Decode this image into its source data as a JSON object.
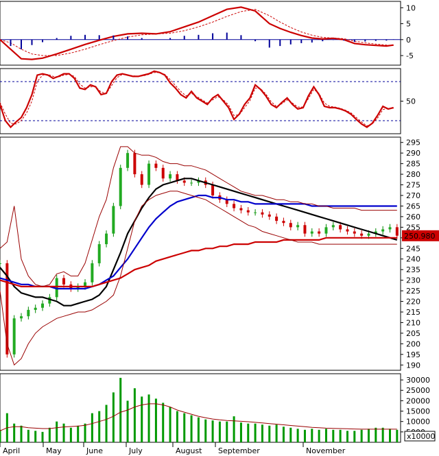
{
  "chart_data": [
    {
      "panel": "macd",
      "type": "line",
      "y_ticks": [
        "10",
        "5",
        "0",
        "-5"
      ],
      "ylim": [
        -8,
        12
      ],
      "x": [
        0,
        6,
        12,
        18,
        24,
        32,
        40,
        48,
        56,
        64,
        72,
        80,
        88,
        96,
        104,
        112,
        120,
        128,
        136,
        144,
        152,
        158,
        164,
        170,
        176,
        182,
        188,
        194,
        200,
        206,
        212,
        218,
        222
      ],
      "series": [
        {
          "key": "macd",
          "color": "#cc0000",
          "values": [
            0,
            -3,
            -6,
            -6.2,
            -5.8,
            -4.5,
            -3,
            -1.5,
            -0.2,
            1,
            1.8,
            2,
            1.8,
            2.5,
            4,
            5.5,
            7.5,
            9.5,
            10.2,
            9,
            5,
            3.5,
            2.3,
            1.3,
            0.5,
            0.2,
            0.4,
            0,
            -1.2,
            -1.6,
            -1.8,
            -2,
            -1.7
          ]
        },
        {
          "key": "signal",
          "color": "#cc0000",
          "dashed": true,
          "values": [
            0,
            -1,
            -3,
            -4.5,
            -5,
            -5,
            -4.2,
            -3,
            -1.6,
            -0.3,
            0.8,
            1.5,
            1.8,
            2,
            2.8,
            4,
            5.5,
            7.3,
            8.8,
            9.5,
            7.5,
            5.5,
            3.8,
            2.4,
            1.4,
            0.7,
            0.5,
            0.3,
            -0.5,
            -1,
            -1.4,
            -1.7,
            -1.8
          ]
        },
        {
          "key": "histogram",
          "color": "#000099",
          "bars": true,
          "values": [
            0,
            -2,
            -3,
            -1.7,
            -0.8,
            0.5,
            1.2,
            1.5,
            1.4,
            1.3,
            1,
            0.5,
            0,
            0.5,
            1.2,
            1.5,
            2,
            2.2,
            1.4,
            -0.5,
            -2.5,
            -2,
            -1.5,
            -1.1,
            -0.9,
            -0.5,
            -0.1,
            -0.3,
            -0.7,
            -0.6,
            -0.4,
            -0.3,
            0.1
          ]
        }
      ]
    },
    {
      "panel": "stochastic",
      "type": "line",
      "y_ticks": [
        "50"
      ],
      "ylim": [
        0,
        100
      ],
      "reference_lines": [
        80,
        20
      ],
      "x": [
        0,
        3,
        6,
        9,
        12,
        15,
        18,
        21,
        24,
        27,
        30,
        33,
        36,
        39,
        42,
        45,
        48,
        51,
        54,
        57,
        60,
        63,
        66,
        69,
        72,
        75,
        78,
        81,
        84,
        87,
        90,
        93,
        96,
        99,
        102,
        105,
        108,
        111,
        114,
        117,
        120,
        123,
        126,
        129,
        132,
        135,
        138,
        141,
        144,
        147,
        150,
        153,
        156,
        159,
        162,
        165,
        168,
        171,
        174,
        177,
        180,
        183,
        186,
        189,
        192,
        195,
        198,
        201,
        204,
        207,
        210,
        213,
        216,
        219,
        222
      ],
      "series": [
        {
          "key": "k",
          "color": "#cc0000",
          "values": [
            45,
            20,
            10,
            18,
            25,
            40,
            60,
            90,
            92,
            90,
            85,
            88,
            92,
            92,
            85,
            70,
            68,
            75,
            72,
            60,
            62,
            80,
            90,
            92,
            90,
            88,
            88,
            90,
            92,
            96,
            94,
            90,
            78,
            70,
            60,
            55,
            65,
            55,
            50,
            45,
            55,
            60,
            50,
            40,
            22,
            30,
            45,
            55,
            75,
            68,
            58,
            45,
            40,
            48,
            55,
            45,
            38,
            40,
            58,
            72,
            60,
            42,
            40,
            40,
            38,
            35,
            30,
            22,
            15,
            10,
            16,
            28,
            42,
            38,
            40
          ]
        },
        {
          "key": "d",
          "color": "#cc0000",
          "dashed": true,
          "values": [
            48,
            30,
            16,
            15,
            20,
            32,
            50,
            80,
            90,
            91,
            88,
            87,
            90,
            91,
            88,
            76,
            70,
            72,
            72,
            64,
            62,
            74,
            86,
            91,
            90,
            89,
            88,
            89,
            91,
            94,
            94,
            91,
            83,
            74,
            65,
            58,
            62,
            57,
            52,
            47,
            52,
            57,
            52,
            44,
            28,
            29,
            40,
            51,
            70,
            69,
            61,
            49,
            42,
            46,
            52,
            47,
            41,
            41,
            54,
            68,
            62,
            47,
            42,
            41,
            39,
            36,
            32,
            25,
            18,
            12,
            15,
            24,
            37,
            39,
            39
          ]
        }
      ]
    },
    {
      "panel": "price",
      "type": "candlestick",
      "y_ticks": [
        "295",
        "290",
        "285",
        "280",
        "275",
        "270",
        "265",
        "260",
        "255",
        "250",
        "245",
        "240",
        "235",
        "230",
        "225",
        "220",
        "215",
        "210",
        "205",
        "200",
        "195",
        "190"
      ],
      "ylim": [
        187.5,
        297.5
      ],
      "last_price": "250.980",
      "months": [
        "April",
        "May",
        "June",
        "July",
        "August",
        "September",
        "November"
      ],
      "x": [
        0,
        4,
        8,
        12,
        16,
        20,
        24,
        28,
        32,
        36,
        40,
        44,
        48,
        52,
        56,
        60,
        64,
        68,
        72,
        76,
        80,
        84,
        88,
        92,
        96,
        100,
        104,
        108,
        112,
        116,
        120,
        124,
        128,
        132,
        136,
        140,
        144,
        148,
        152,
        156,
        160,
        164,
        168,
        172,
        176,
        180,
        184,
        188,
        192,
        196,
        200,
        204,
        208,
        212,
        216,
        220,
        224
      ],
      "series": [
        {
          "key": "close",
          "values": [
            238,
            195,
            212,
            213,
            216,
            217,
            219,
            222,
            231,
            228,
            226,
            227,
            229,
            238,
            247,
            252,
            265,
            283,
            290,
            280,
            275,
            285,
            283,
            278,
            280,
            277,
            276,
            276,
            277,
            275,
            270,
            268,
            266,
            264,
            263,
            262,
            262,
            261,
            260,
            258,
            257,
            255,
            256,
            252,
            253,
            252,
            255,
            256,
            254,
            253,
            252,
            251,
            252,
            253,
            254,
            255,
            251
          ]
        },
        {
          "key": "ma_black",
          "color": "#000000",
          "values": [
            236,
            232,
            227,
            224,
            223,
            222,
            222,
            221,
            220,
            218,
            218,
            219,
            220,
            221,
            223,
            227,
            235,
            243,
            252,
            258,
            264,
            269,
            273,
            275,
            276,
            277,
            278,
            278,
            277,
            276,
            275,
            274,
            273,
            272,
            271,
            270,
            269,
            268,
            267,
            266,
            265,
            264,
            263,
            262,
            261,
            260,
            259,
            258,
            257,
            256,
            255,
            254,
            253,
            252,
            251,
            250,
            249
          ]
        },
        {
          "key": "ma_blue",
          "color": "#0000cc",
          "values": [
            231,
            230,
            229,
            228,
            228,
            227,
            227,
            227,
            226,
            226,
            226,
            226,
            226,
            227,
            228,
            230,
            232,
            236,
            240,
            245,
            250,
            255,
            259,
            262,
            265,
            267,
            268,
            269,
            270,
            270,
            269,
            269,
            268,
            268,
            267,
            267,
            266,
            266,
            266,
            266,
            266,
            266,
            266,
            266,
            265,
            265,
            265,
            265,
            265,
            265,
            265,
            265,
            265,
            265,
            265,
            265,
            265
          ]
        },
        {
          "key": "ma_red",
          "color": "#cc0000",
          "values": [
            230,
            229,
            228,
            227,
            227,
            227,
            227,
            227,
            227,
            227,
            227,
            227,
            227,
            227,
            228,
            229,
            230,
            231,
            233,
            235,
            236,
            237,
            239,
            240,
            241,
            242,
            243,
            244,
            244,
            245,
            245,
            246,
            246,
            247,
            247,
            247,
            248,
            248,
            248,
            248,
            249,
            249,
            249,
            249,
            249,
            249,
            250,
            250,
            250,
            250,
            250,
            250,
            250,
            250,
            250,
            250,
            250
          ]
        },
        {
          "key": "bb_upper",
          "color": "#990000",
          "values": [
            245,
            248,
            265,
            240,
            232,
            228,
            227,
            228,
            233,
            234,
            232,
            232,
            238,
            249,
            260,
            268,
            283,
            293,
            293,
            290,
            289,
            289,
            288,
            286,
            285,
            285,
            284,
            284,
            283,
            282,
            280,
            278,
            276,
            274,
            272,
            271,
            270,
            270,
            269,
            268,
            268,
            267,
            267,
            266,
            266,
            265,
            265,
            264,
            264,
            264,
            264,
            263,
            263,
            263,
            263,
            263,
            263
          ]
        },
        {
          "key": "bb_lower",
          "color": "#990000",
          "values": [
            225,
            200,
            190,
            193,
            200,
            205,
            208,
            210,
            212,
            213,
            214,
            215,
            215,
            216,
            218,
            220,
            223,
            232,
            245,
            258,
            265,
            268,
            270,
            271,
            272,
            272,
            271,
            270,
            269,
            268,
            266,
            264,
            262,
            260,
            258,
            256,
            255,
            253,
            252,
            251,
            250,
            249,
            248,
            248,
            248,
            247,
            247,
            247,
            247,
            247,
            247,
            247,
            247,
            247,
            247,
            247,
            247
          ]
        }
      ]
    },
    {
      "panel": "volume",
      "type": "bar",
      "y_ticks": [
        "30000",
        "25000",
        "20000",
        "15000",
        "10000",
        "5000"
      ],
      "unit": "x10000",
      "ylim": [
        0,
        33000
      ],
      "x": [
        0,
        4,
        8,
        12,
        16,
        20,
        24,
        28,
        32,
        36,
        40,
        44,
        48,
        52,
        56,
        60,
        64,
        68,
        72,
        76,
        80,
        84,
        88,
        92,
        96,
        100,
        104,
        108,
        112,
        116,
        120,
        124,
        128,
        132,
        136,
        140,
        144,
        148,
        152,
        156,
        160,
        164,
        168,
        172,
        176,
        180,
        184,
        188,
        192,
        196,
        200,
        204,
        208,
        212,
        216,
        220,
        224
      ],
      "series": [
        {
          "key": "volume",
          "color": "#009900",
          "values": [
            6000,
            14000,
            9000,
            8000,
            6000,
            5500,
            5000,
            7000,
            10000,
            9000,
            7000,
            8000,
            9000,
            14000,
            15000,
            18000,
            24000,
            31000,
            20000,
            26000,
            22000,
            23000,
            21000,
            19000,
            17000,
            15000,
            14000,
            13000,
            12000,
            11000,
            10500,
            10000,
            10000,
            12500,
            9500,
            9000,
            9000,
            8500,
            8000,
            8500,
            7500,
            7000,
            6500,
            6000,
            6500,
            6000,
            6500,
            6000,
            6000,
            5500,
            5500,
            6000,
            6500,
            7000,
            7000,
            6500,
            6000
          ]
        },
        {
          "key": "volume_ma",
          "color": "#990000",
          "values": [
            5500,
            7000,
            7500,
            7500,
            7000,
            6800,
            6600,
            6600,
            7000,
            7400,
            7600,
            7800,
            8200,
            9000,
            10000,
            11000,
            12500,
            14500,
            15500,
            17000,
            18000,
            18500,
            18500,
            18000,
            17000,
            15500,
            14500,
            13500,
            12500,
            11800,
            11200,
            10800,
            10500,
            10300,
            10100,
            9900,
            9600,
            9300,
            9000,
            8700,
            8400,
            8100,
            7800,
            7500,
            7200,
            7000,
            6800,
            6700,
            6600,
            6500,
            6400,
            6300,
            6300,
            6300,
            6300,
            6300,
            6300
          ]
        }
      ]
    }
  ]
}
